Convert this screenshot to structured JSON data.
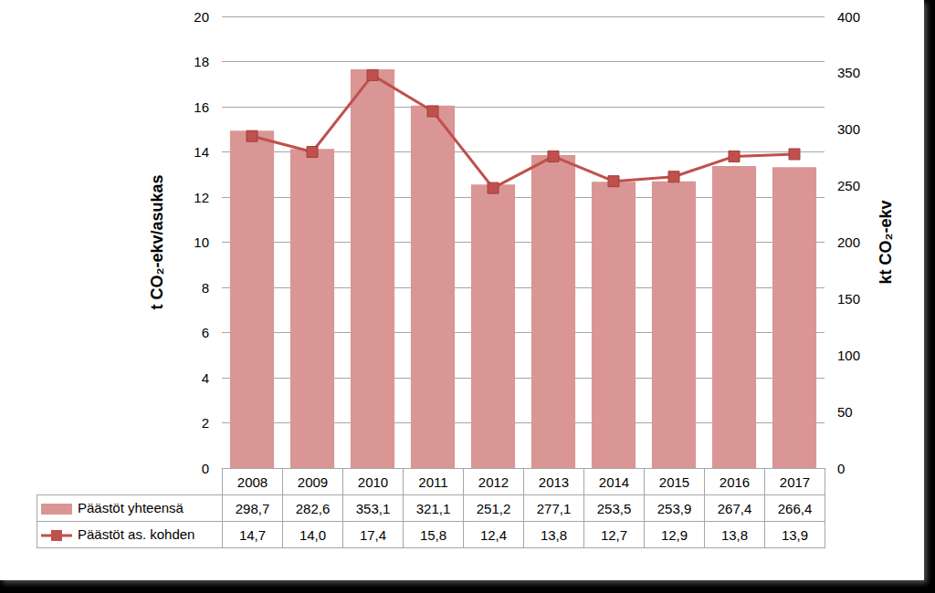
{
  "chart_data": {
    "type": "bar",
    "categories": [
      "2008",
      "2009",
      "2010",
      "2011",
      "2012",
      "2013",
      "2014",
      "2015",
      "2016",
      "2017"
    ],
    "series": [
      {
        "name": "Päästöt yhteensä",
        "type": "bar",
        "axis": "y2",
        "color": "#d99694",
        "values": [
          298.7,
          282.6,
          353.1,
          321.1,
          251.2,
          277.1,
          253.5,
          253.9,
          267.4,
          266.4
        ],
        "value_labels": [
          "298,7",
          "282,6",
          "353,1",
          "321,1",
          "251,2",
          "277,1",
          "253,5",
          "253,9",
          "267,4",
          "266,4"
        ]
      },
      {
        "name": "Päästöt as. kohden",
        "type": "line",
        "color": "#c0504d",
        "marker": "square",
        "line_style": "solid",
        "values": [
          14.7,
          14.0,
          17.4,
          15.8,
          12.4,
          13.8,
          12.7,
          12.9,
          13.8,
          13.9
        ],
        "value_labels": [
          "14,7",
          "14,0",
          "17,4",
          "15,8",
          "12,4",
          "13,8",
          "12,7",
          "12,9",
          "13,8",
          "13,9"
        ]
      }
    ],
    "ylabel": "t CO₂-ekv/asukas",
    "y2label": "kt CO₂-ekv",
    "ylim": [
      0,
      20
    ],
    "yticks": [
      0,
      2,
      4,
      6,
      8,
      10,
      12,
      14,
      16,
      18,
      20
    ],
    "y2lim": [
      0,
      400
    ],
    "y2ticks": [
      0,
      50,
      100,
      150,
      200,
      250,
      300,
      350,
      400
    ],
    "grid": true
  }
}
